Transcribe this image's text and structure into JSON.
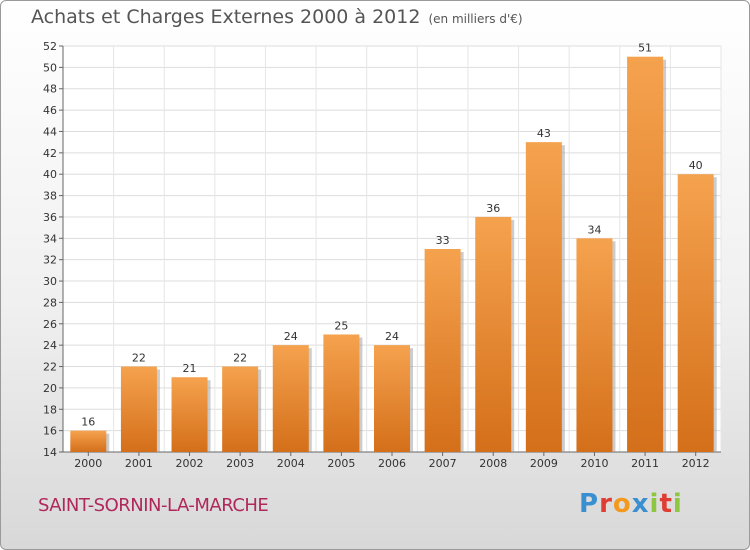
{
  "header": {
    "title": "Achats et Charges Externes 2000 à 2012",
    "unit": "(en milliers d'€)"
  },
  "commune": "SAINT-SORNIN-LA-MARCHE",
  "logo": {
    "text": "Proxiti",
    "letters": [
      {
        "char": "P",
        "color": "#3a8fd0"
      },
      {
        "char": "r",
        "color": "#e03c31"
      },
      {
        "char": "o",
        "color": "#f29a1f"
      },
      {
        "char": "x",
        "color": "#3a8fd0"
      },
      {
        "char": "i",
        "color": "#8dc63f"
      },
      {
        "char": "t",
        "color": "#e03c31"
      },
      {
        "char": "i",
        "color": "#8dc63f"
      }
    ]
  },
  "colors": {
    "bar_top": "#f5a24e",
    "bar_bottom": "#d46f1a",
    "commune": "#b0285a"
  },
  "chart_data": {
    "type": "bar",
    "title": "Achats et Charges Externes 2000 à 2012",
    "subtitle": "(en milliers d'€)",
    "categories": [
      "2000",
      "2001",
      "2002",
      "2003",
      "2004",
      "2005",
      "2006",
      "2007",
      "2008",
      "2009",
      "2010",
      "2011",
      "2012"
    ],
    "values": [
      16,
      22,
      21,
      22,
      24,
      25,
      24,
      33,
      36,
      43,
      34,
      51,
      40
    ],
    "ylim": [
      14,
      52
    ],
    "yticks": [
      14,
      16,
      18,
      20,
      22,
      24,
      26,
      28,
      30,
      32,
      34,
      36,
      38,
      40,
      42,
      44,
      46,
      48,
      50,
      52
    ],
    "grid": true,
    "xlabel": "",
    "ylabel": ""
  }
}
